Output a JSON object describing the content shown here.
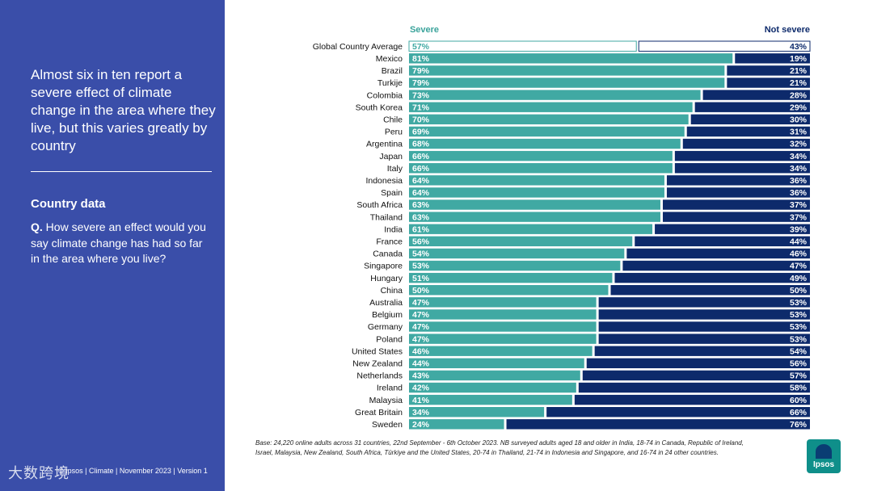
{
  "panel": {
    "headline": "Almost six in ten report a severe effect of climate change in the area where they live, but this varies greatly by country",
    "section_title": "Country data",
    "question_prefix": "Q.",
    "question_text": "How severe an effect would you say climate change has had so far in the area where you live?",
    "footer": "© Ipsos | Climate | November 2023 | Version 1",
    "watermark": "大数跨境"
  },
  "base_note": "Base: 24,220 online adults across 31 countries, 22nd September - 6th October 2023. NB surveyed adults aged 18 and older in India, 18-74 in Canada, Republic of Ireland, Israel, Malaysia, New Zealand, South Africa, Türkiye and the United States, 20-74 in Thailand, 21-74 in Indonesia and Singapore, and 16-74 in 24 other countries.",
  "logo_text": "Ipsos",
  "colors": {
    "panel_bg": "#3a4ea9",
    "severe": "#40a9a3",
    "not_severe": "#0d2a6b",
    "severe_header": "#3aa39b",
    "not_severe_header": "#0d2a6b"
  },
  "chart_data": {
    "type": "bar",
    "orientation": "horizontal",
    "stacked": true,
    "categories": [
      "Global Country Average",
      "Mexico",
      "Brazil",
      "Turkije",
      "Colombia",
      "South Korea",
      "Chile",
      "Peru",
      "Argentina",
      "Japan",
      "Italy",
      "Indonesia",
      "Spain",
      "South Africa",
      "Thailand",
      "India",
      "France",
      "Canada",
      "Singapore",
      "Hungary",
      "China",
      "Australia",
      "Belgium",
      "Germany",
      "Poland",
      "United States",
      "New Zealand",
      "Netherlands",
      "Ireland",
      "Malaysia",
      "Great Britain",
      "Sweden"
    ],
    "series": [
      {
        "name": "Severe",
        "values": [
          57,
          81,
          79,
          79,
          73,
          71,
          70,
          69,
          68,
          66,
          66,
          64,
          64,
          63,
          63,
          61,
          56,
          54,
          53,
          51,
          50,
          47,
          47,
          47,
          47,
          46,
          44,
          43,
          42,
          41,
          34,
          24
        ]
      },
      {
        "name": "Not severe",
        "values": [
          43,
          19,
          21,
          21,
          28,
          29,
          30,
          31,
          32,
          34,
          34,
          36,
          36,
          37,
          37,
          39,
          44,
          46,
          47,
          49,
          50,
          53,
          53,
          53,
          53,
          54,
          56,
          57,
          58,
          60,
          66,
          76
        ]
      }
    ],
    "value_suffix": "%",
    "xlim": [
      0,
      100
    ],
    "legend_position": "top",
    "grid": false
  }
}
